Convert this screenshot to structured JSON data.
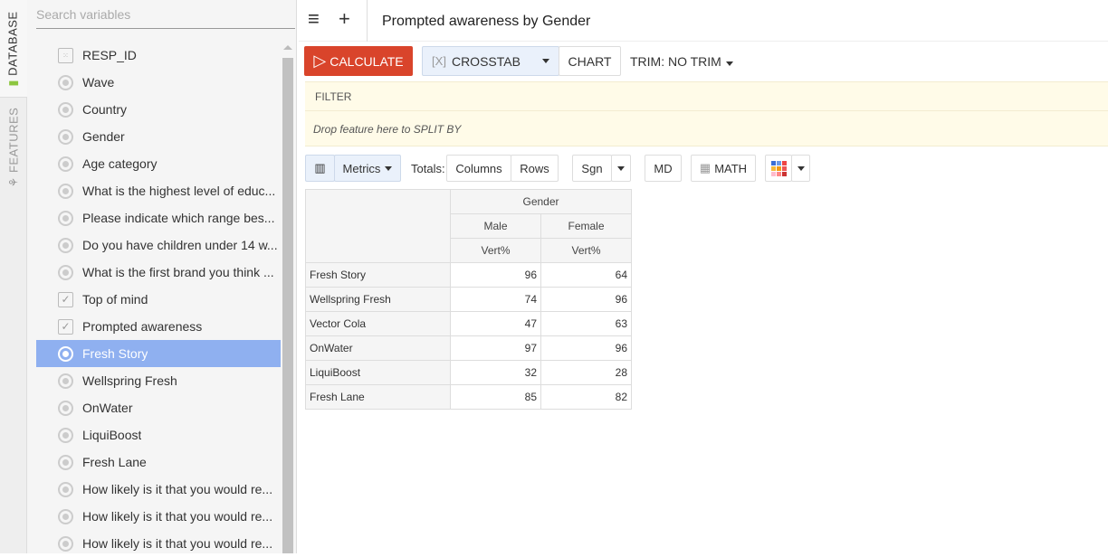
{
  "vtabs": {
    "database": "DATABASE",
    "features": "FEATURES"
  },
  "sidebar": {
    "search_placeholder": "Search variables",
    "items": [
      {
        "label": "RESP_ID",
        "icon": "dice"
      },
      {
        "label": "Wave",
        "icon": "radio"
      },
      {
        "label": "Country",
        "icon": "radio"
      },
      {
        "label": "Gender",
        "icon": "radio"
      },
      {
        "label": "Age category",
        "icon": "radio"
      },
      {
        "label": "What is the highest level of educ...",
        "icon": "radio"
      },
      {
        "label": "Please indicate which range bes...",
        "icon": "radio"
      },
      {
        "label": "Do you have children under 14 w...",
        "icon": "radio"
      },
      {
        "label": "What is the first brand you think ...",
        "icon": "radio"
      },
      {
        "label": "Top of mind",
        "icon": "checkbox"
      },
      {
        "label": "Prompted awareness",
        "icon": "checkbox"
      },
      {
        "label": "Fresh Story",
        "icon": "radio",
        "selected": true
      },
      {
        "label": "Wellspring Fresh",
        "icon": "radio"
      },
      {
        "label": "OnWater",
        "icon": "radio"
      },
      {
        "label": "LiquiBoost",
        "icon": "radio"
      },
      {
        "label": "Fresh Lane",
        "icon": "radio"
      },
      {
        "label": "How likely is it that you would re...",
        "icon": "radio"
      },
      {
        "label": "How likely is it that you would re...",
        "icon": "radio"
      },
      {
        "label": "How likely is it that you would re...",
        "icon": "radio"
      }
    ]
  },
  "header": {
    "title": "Prompted awareness by Gender",
    "menu": "≡",
    "add": "+"
  },
  "toolbar": {
    "calculate": "CALCULATE",
    "crosstab": "CROSSTAB",
    "chart": "CHART",
    "trim": "TRIM: NO TRIM"
  },
  "filter": {
    "label": "FILTER",
    "drop": "Drop feature here to SPLIT BY"
  },
  "options": {
    "metrics": "Metrics",
    "totals": "Totals:",
    "columns": "Columns",
    "rows": "Rows",
    "sgn": "Sgn",
    "md": "MD",
    "math": "MATH"
  },
  "table": {
    "group": "Gender",
    "columns": [
      "Male",
      "Female"
    ],
    "metric": "Vert%",
    "rows": [
      {
        "label": "Fresh Story",
        "values": [
          96,
          64
        ]
      },
      {
        "label": "Wellspring Fresh",
        "values": [
          74,
          96
        ]
      },
      {
        "label": "Vector Cola",
        "values": [
          47,
          63
        ]
      },
      {
        "label": "OnWater",
        "values": [
          97,
          96
        ]
      },
      {
        "label": "LiquiBoost",
        "values": [
          32,
          28
        ]
      },
      {
        "label": "Fresh Lane",
        "values": [
          85,
          82
        ]
      }
    ]
  },
  "colors": {
    "calculate": "#d9442b",
    "selected": "#8fb0f0",
    "filter_bg": "#fffbe8",
    "database_icon": "#8cc63f"
  }
}
